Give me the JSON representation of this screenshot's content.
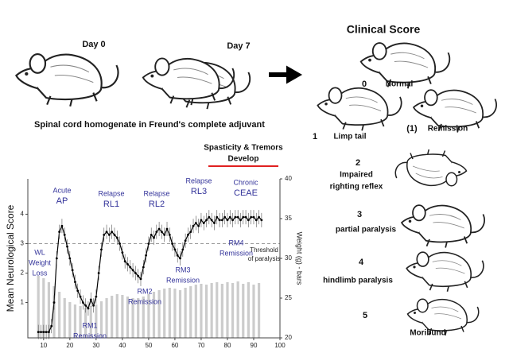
{
  "chart_data": {
    "type": "line",
    "y_label": "Mean Neurological Score",
    "y2_label": "Weight (g) - bars",
    "xlim": [
      4,
      100
    ],
    "xticks": [
      10,
      20,
      30,
      40,
      50,
      60,
      70,
      80,
      90,
      100
    ],
    "ylim": [
      -0.2,
      5.2
    ],
    "yticks": [
      1,
      2,
      3,
      4
    ],
    "y2lim": [
      20,
      40
    ],
    "y2ticks": [
      20,
      25,
      30,
      35,
      40
    ],
    "threshold": 3,
    "threshold_label": [
      "Threshold",
      "of paralysis"
    ],
    "series": [
      {
        "color": "#000000",
        "x": [
          8,
          9,
          10,
          11,
          12,
          13,
          14,
          15,
          16,
          17,
          18,
          19,
          20,
          21,
          22,
          23,
          24,
          25,
          26,
          27,
          28,
          29,
          30,
          31,
          32,
          33,
          34,
          35,
          36,
          37,
          38,
          39,
          40,
          41,
          42,
          43,
          44,
          45,
          46,
          47,
          48,
          49,
          50,
          51,
          52,
          53,
          54,
          55,
          56,
          57,
          58,
          59,
          60,
          61,
          62,
          63,
          64,
          65,
          66,
          67,
          68,
          69,
          70,
          71,
          72,
          73,
          74,
          75,
          76,
          77,
          78,
          79,
          80,
          81,
          82,
          83,
          84,
          85,
          86,
          87,
          88,
          89,
          90,
          91,
          92,
          93
        ],
        "values": [
          0,
          0,
          0,
          0,
          0,
          0.2,
          1.0,
          2.5,
          3.4,
          3.6,
          3.3,
          2.9,
          2.5,
          2.1,
          1.7,
          1.4,
          1.2,
          1.0,
          0.9,
          0.8,
          1.1,
          0.9,
          1.2,
          2.0,
          2.8,
          3.3,
          3.4,
          3.3,
          3.4,
          3.3,
          3.2,
          3.0,
          2.7,
          2.4,
          2.3,
          2.2,
          2.1,
          2.0,
          1.9,
          1.8,
          2.2,
          2.6,
          3.0,
          3.3,
          3.2,
          3.4,
          3.5,
          3.4,
          3.3,
          3.5,
          3.3,
          3.0,
          2.8,
          2.6,
          2.5,
          2.8,
          3.1,
          3.3,
          3.4,
          3.6,
          3.7,
          3.6,
          3.8,
          3.7,
          3.8,
          3.9,
          3.8,
          3.7,
          3.9,
          3.8,
          3.8,
          3.9,
          3.8,
          3.9,
          3.8,
          3.9,
          3.9,
          3.8,
          3.9,
          3.9,
          3.8,
          3.9,
          3.9,
          3.8,
          3.9,
          3.8
        ]
      },
      {
        "type": "bar",
        "axis": "y2",
        "color": "#cccccc",
        "x": [
          8,
          10,
          12,
          14,
          16,
          18,
          20,
          22,
          24,
          26,
          28,
          30,
          32,
          34,
          36,
          38,
          40,
          42,
          44,
          46,
          48,
          50,
          52,
          54,
          56,
          58,
          60,
          62,
          64,
          66,
          68,
          70,
          72,
          74,
          76,
          78,
          80,
          82,
          84,
          86,
          88,
          90,
          92
        ],
        "values": [
          27.8,
          27.5,
          27,
          26.5,
          25.8,
          25,
          24.5,
          24.2,
          24,
          23.8,
          24,
          24.2,
          24.6,
          25,
          25.3,
          25.5,
          25.4,
          25.2,
          25,
          25,
          25.2,
          25.5,
          25.8,
          26,
          26.2,
          26.3,
          26.2,
          26,
          26.3,
          26.5,
          26.7,
          26.8,
          26.7,
          26.9,
          27,
          26.8,
          27,
          26.9,
          27.1,
          26.8,
          27,
          26.7,
          26.9
        ]
      }
    ],
    "annotations": [
      {
        "lines": [
          "WL",
          "Weight",
          "Loss"
        ]
      },
      {
        "lines": [
          "Acute",
          "AP"
        ]
      },
      {
        "lines": [
          "Relapse",
          "RL1"
        ]
      },
      {
        "lines": [
          "Relapse",
          "RL2"
        ]
      },
      {
        "lines": [
          "Relapse",
          "RL3"
        ]
      },
      {
        "lines": [
          "Chronic",
          "CEAE"
        ]
      },
      {
        "lines": [
          "RM4",
          "Remission"
        ]
      },
      {
        "lines": [
          "RM3",
          "Remission"
        ]
      },
      {
        "lines": [
          "RM2",
          "Remission"
        ]
      },
      {
        "lines": [
          "RM1",
          "Remission"
        ]
      }
    ],
    "phase_label": [
      "Spasticity & Tremors",
      "Develop"
    ]
  },
  "figure": {
    "day0": "Day 0",
    "day7": "Day 7",
    "caption": "Spinal cord homogenate in Freund's complete adjuvant",
    "clinical_title": "Clinical Score",
    "scores": [
      {
        "number": "0",
        "lines": [
          "Normal"
        ]
      },
      {
        "number": "1",
        "lines": [
          "Limp tail"
        ]
      },
      {
        "number": "(1)",
        "lines": [
          "Remission"
        ]
      },
      {
        "number": "2",
        "lines": [
          "Impaired",
          "righting reflex"
        ]
      },
      {
        "number": "3",
        "lines": [
          "partial paralysis"
        ]
      },
      {
        "number": "4",
        "lines": [
          "hindlimb paralysis"
        ]
      },
      {
        "number": "5",
        "lines": [
          "Moribund"
        ]
      }
    ]
  }
}
